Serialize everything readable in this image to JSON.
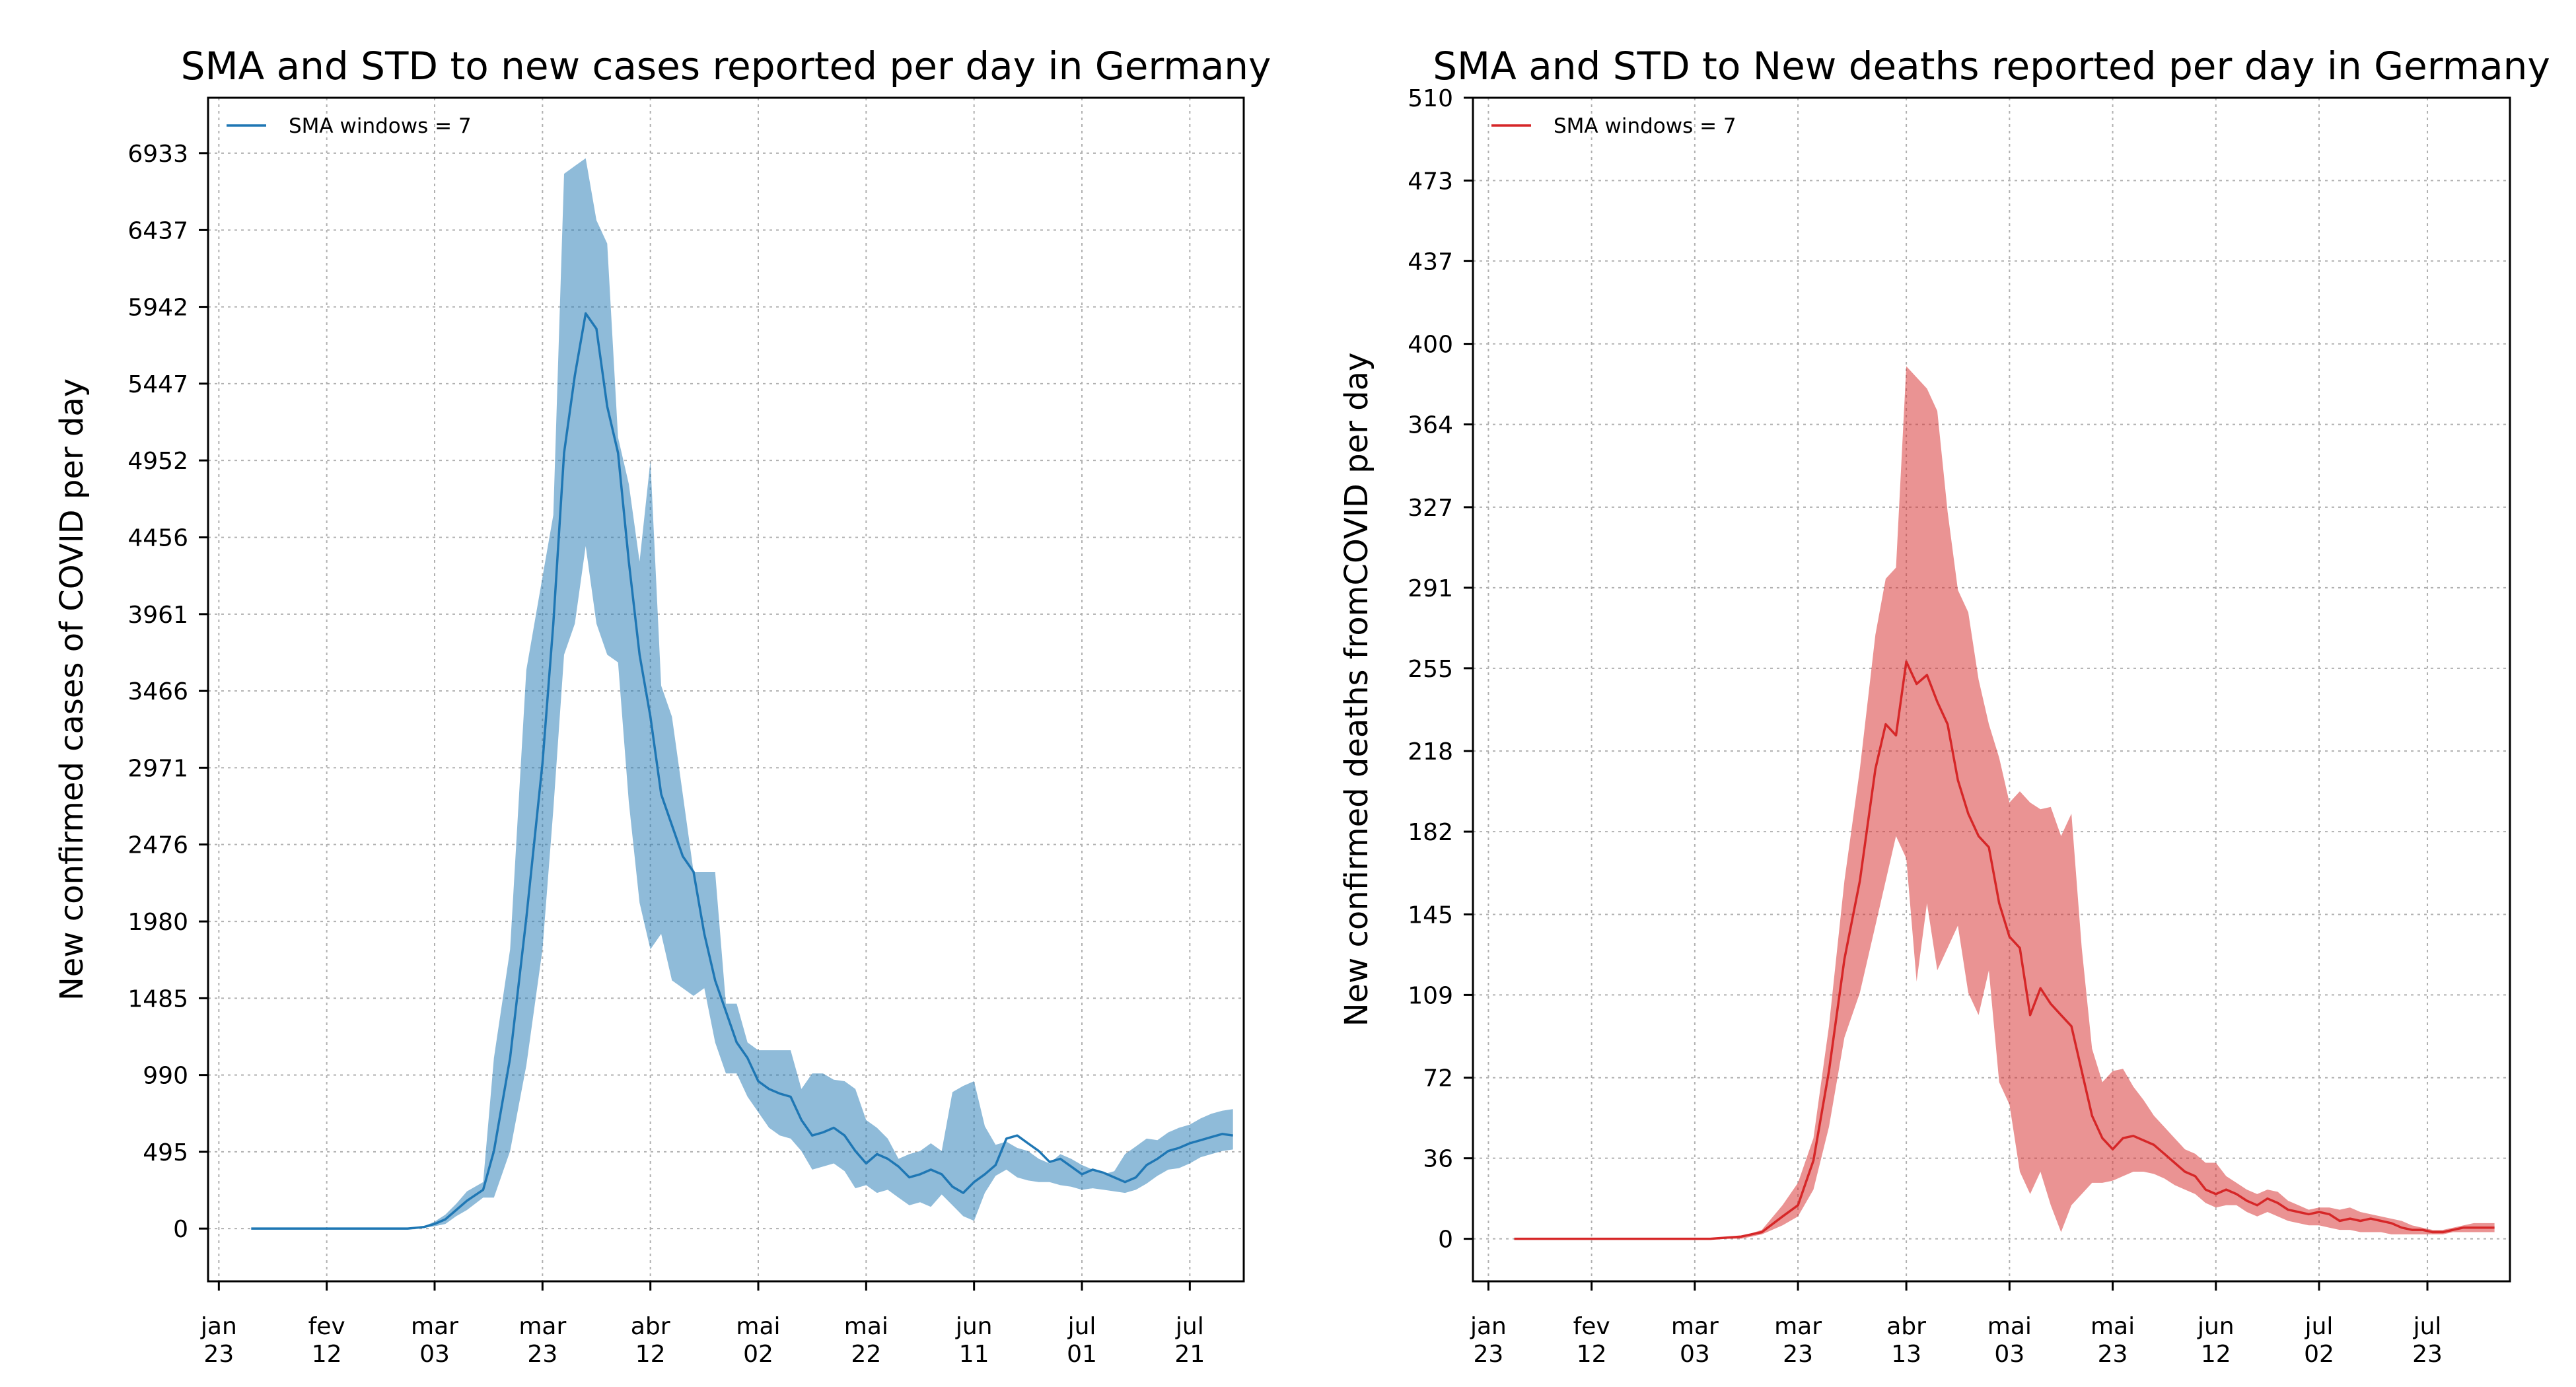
{
  "chart_data": [
    {
      "type": "area",
      "title": "SMA and STD to new cases reported per day in Germany",
      "xlabel": "",
      "ylabel": "New confirmed cases of COVID per day",
      "legend": {
        "label": "SMA windows = 7",
        "placement": "top-left"
      },
      "grid": true,
      "color": "#1f77b4",
      "band_color": "#1f77b4",
      "band_opacity": 0.5,
      "x_range": [
        "2020-01-21",
        "2020-07-31"
      ],
      "ylim": [
        -340,
        7290
      ],
      "yticks": [
        0,
        495,
        990,
        1485,
        1980,
        2476,
        2971,
        3466,
        3961,
        4456,
        4952,
        5447,
        5942,
        6437,
        6933
      ],
      "xticks": [
        {
          "date": "2020-01-23",
          "l1": "jan",
          "l2": "23"
        },
        {
          "date": "2020-02-12",
          "l1": "fev",
          "l2": "12"
        },
        {
          "date": "2020-03-03",
          "l1": "mar",
          "l2": "03"
        },
        {
          "date": "2020-03-23",
          "l1": "mar",
          "l2": "23"
        },
        {
          "date": "2020-04-12",
          "l1": "abr",
          "l2": "12"
        },
        {
          "date": "2020-05-02",
          "l1": "mai",
          "l2": "02"
        },
        {
          "date": "2020-05-22",
          "l1": "mai",
          "l2": "22"
        },
        {
          "date": "2020-06-11",
          "l1": "jun",
          "l2": "11"
        },
        {
          "date": "2020-07-01",
          "l1": "jul",
          "l2": "01"
        },
        {
          "date": "2020-07-21",
          "l1": "jul",
          "l2": "21"
        }
      ],
      "series": [
        {
          "name": "SMA windows = 7",
          "x": [
            "2020-01-29",
            "2020-02-20",
            "2020-02-27",
            "2020-03-01",
            "2020-03-03",
            "2020-03-05",
            "2020-03-07",
            "2020-03-09",
            "2020-03-12",
            "2020-03-14",
            "2020-03-17",
            "2020-03-20",
            "2020-03-23",
            "2020-03-25",
            "2020-03-27",
            "2020-03-29",
            "2020-03-31",
            "2020-04-02",
            "2020-04-04",
            "2020-04-06",
            "2020-04-08",
            "2020-04-10",
            "2020-04-12",
            "2020-04-14",
            "2020-04-16",
            "2020-04-18",
            "2020-04-20",
            "2020-04-22",
            "2020-04-24",
            "2020-04-26",
            "2020-04-28",
            "2020-04-30",
            "2020-05-02",
            "2020-05-04",
            "2020-05-06",
            "2020-05-08",
            "2020-05-10",
            "2020-05-12",
            "2020-05-14",
            "2020-05-16",
            "2020-05-18",
            "2020-05-20",
            "2020-05-22",
            "2020-05-24",
            "2020-05-26",
            "2020-05-28",
            "2020-05-30",
            "2020-06-01",
            "2020-06-03",
            "2020-06-05",
            "2020-06-07",
            "2020-06-09",
            "2020-06-11",
            "2020-06-13",
            "2020-06-15",
            "2020-06-17",
            "2020-06-19",
            "2020-06-21",
            "2020-06-23",
            "2020-06-25",
            "2020-06-27",
            "2020-06-29",
            "2020-07-01",
            "2020-07-03",
            "2020-07-05",
            "2020-07-07",
            "2020-07-09",
            "2020-07-11",
            "2020-07-13",
            "2020-07-15",
            "2020-07-17",
            "2020-07-19",
            "2020-07-21",
            "2020-07-23",
            "2020-07-25",
            "2020-07-27",
            "2020-07-29"
          ],
          "mean": [
            0,
            0,
            0,
            10,
            30,
            60,
            120,
            180,
            250,
            500,
            1100,
            2000,
            3000,
            3900,
            5000,
            5500,
            5900,
            5800,
            5300,
            5000,
            4300,
            3700,
            3300,
            2800,
            2600,
            2400,
            2300,
            1900,
            1600,
            1400,
            1200,
            1100,
            950,
            900,
            870,
            850,
            700,
            600,
            620,
            650,
            600,
            500,
            420,
            480,
            450,
            400,
            330,
            350,
            380,
            350,
            270,
            230,
            300,
            350,
            410,
            580,
            600,
            550,
            500,
            430,
            450,
            400,
            350,
            380,
            360,
            330,
            300,
            330,
            410,
            450,
            500,
            520,
            550,
            570,
            590,
            610,
            600
          ],
          "upper": [
            0,
            0,
            0,
            15,
            45,
            90,
            160,
            240,
            300,
            1100,
            1800,
            3600,
            4200,
            4600,
            6800,
            6850,
            6900,
            6500,
            6350,
            5100,
            4800,
            4300,
            4950,
            3500,
            3300,
            2800,
            2300,
            2300,
            2300,
            1450,
            1450,
            1200,
            1150,
            1150,
            1150,
            1150,
            900,
            1000,
            1000,
            960,
            950,
            900,
            700,
            650,
            580,
            450,
            480,
            500,
            550,
            500,
            880,
            920,
            950,
            660,
            540,
            560,
            520,
            500,
            450,
            420,
            480,
            450,
            410,
            380,
            350,
            370,
            480,
            530,
            580,
            570,
            620,
            650,
            670,
            710,
            740,
            760,
            770
          ],
          "lower": [
            0,
            0,
            0,
            5,
            15,
            30,
            80,
            120,
            200,
            200,
            500,
            1050,
            1800,
            2700,
            3700,
            3900,
            4400,
            3900,
            3700,
            3650,
            2750,
            2100,
            1800,
            1900,
            1600,
            1550,
            1500,
            1550,
            1200,
            1000,
            1000,
            850,
            750,
            650,
            600,
            580,
            500,
            380,
            400,
            420,
            370,
            260,
            280,
            230,
            250,
            200,
            150,
            170,
            140,
            220,
            150,
            80,
            50,
            230,
            340,
            380,
            330,
            310,
            300,
            300,
            280,
            270,
            250,
            260,
            250,
            240,
            230,
            250,
            290,
            340,
            380,
            390,
            420,
            460,
            480,
            500,
            510
          ]
        }
      ]
    },
    {
      "type": "area",
      "title": "SMA and STD to New deaths reported per day in Germany",
      "xlabel": "",
      "ylabel": "New confirmed deaths fromCOVID per day",
      "legend": {
        "label": "SMA windows = 7",
        "placement": "top-left"
      },
      "grid": true,
      "color": "#d62728",
      "band_color": "#d62728",
      "band_opacity": 0.5,
      "x_range": [
        "2020-01-20",
        "2020-08-08"
      ],
      "ylim": [
        -19,
        510
      ],
      "yticks": [
        0,
        36,
        72,
        109,
        145,
        182,
        218,
        255,
        291,
        327,
        364,
        400,
        437,
        473,
        510
      ],
      "xticks": [
        {
          "date": "2020-01-23",
          "l1": "jan",
          "l2": "23"
        },
        {
          "date": "2020-02-12",
          "l1": "fev",
          "l2": "12"
        },
        {
          "date": "2020-03-03",
          "l1": "mar",
          "l2": "03"
        },
        {
          "date": "2020-03-23",
          "l1": "mar",
          "l2": "23"
        },
        {
          "date": "2020-04-13",
          "l1": "abr",
          "l2": "13"
        },
        {
          "date": "2020-05-03",
          "l1": "mai",
          "l2": "03"
        },
        {
          "date": "2020-05-23",
          "l1": "mai",
          "l2": "23"
        },
        {
          "date": "2020-06-12",
          "l1": "jun",
          "l2": "12"
        },
        {
          "date": "2020-07-02",
          "l1": "jul",
          "l2": "02"
        },
        {
          "date": "2020-07-23",
          "l1": "jul",
          "l2": "23"
        }
      ],
      "series": [
        {
          "name": "SMA windows = 7",
          "x": [
            "2020-01-28",
            "2020-03-06",
            "2020-03-12",
            "2020-03-16",
            "2020-03-20",
            "2020-03-23",
            "2020-03-26",
            "2020-03-29",
            "2020-04-01",
            "2020-04-04",
            "2020-04-07",
            "2020-04-09",
            "2020-04-11",
            "2020-04-13",
            "2020-04-15",
            "2020-04-17",
            "2020-04-19",
            "2020-04-21",
            "2020-04-23",
            "2020-04-25",
            "2020-04-27",
            "2020-04-29",
            "2020-05-01",
            "2020-05-03",
            "2020-05-05",
            "2020-05-07",
            "2020-05-09",
            "2020-05-11",
            "2020-05-13",
            "2020-05-15",
            "2020-05-17",
            "2020-05-19",
            "2020-05-21",
            "2020-05-23",
            "2020-05-25",
            "2020-05-27",
            "2020-05-29",
            "2020-05-31",
            "2020-06-02",
            "2020-06-04",
            "2020-06-06",
            "2020-06-08",
            "2020-06-10",
            "2020-06-12",
            "2020-06-14",
            "2020-06-16",
            "2020-06-18",
            "2020-06-20",
            "2020-06-22",
            "2020-06-24",
            "2020-06-26",
            "2020-06-28",
            "2020-06-30",
            "2020-07-02",
            "2020-07-04",
            "2020-07-06",
            "2020-07-08",
            "2020-07-10",
            "2020-07-12",
            "2020-07-14",
            "2020-07-16",
            "2020-07-18",
            "2020-07-20",
            "2020-07-22",
            "2020-07-24",
            "2020-07-26",
            "2020-07-28",
            "2020-07-30",
            "2020-08-01",
            "2020-08-03",
            "2020-08-05"
          ],
          "mean": [
            0,
            0,
            1,
            3,
            10,
            15,
            35,
            75,
            125,
            160,
            210,
            230,
            225,
            258,
            248,
            252,
            240,
            230,
            205,
            190,
            180,
            175,
            150,
            135,
            130,
            100,
            112,
            105,
            100,
            95,
            75,
            55,
            45,
            40,
            45,
            46,
            44,
            42,
            38,
            34,
            30,
            28,
            22,
            20,
            22,
            20,
            17,
            15,
            18,
            16,
            13,
            12,
            11,
            12,
            11,
            8,
            9,
            8,
            9,
            8,
            7,
            5,
            4,
            4,
            3,
            3,
            4,
            5,
            5,
            5,
            5
          ],
          "upper": [
            0,
            0,
            1,
            4,
            15,
            25,
            45,
            95,
            160,
            210,
            270,
            295,
            300,
            390,
            385,
            380,
            370,
            325,
            290,
            280,
            250,
            230,
            215,
            195,
            200,
            195,
            192,
            193,
            180,
            190,
            130,
            85,
            70,
            75,
            76,
            68,
            62,
            55,
            50,
            45,
            40,
            38,
            34,
            34,
            28,
            25,
            22,
            20,
            22,
            21,
            17,
            15,
            13,
            14,
            14,
            13,
            14,
            12,
            11,
            10,
            9,
            8,
            6,
            5,
            4,
            4,
            5,
            6,
            7,
            7,
            7
          ],
          "lower": [
            0,
            0,
            0,
            2,
            6,
            10,
            22,
            50,
            90,
            110,
            140,
            160,
            180,
            170,
            115,
            150,
            120,
            130,
            140,
            110,
            100,
            120,
            70,
            60,
            30,
            20,
            30,
            15,
            3,
            15,
            20,
            25,
            25,
            26,
            28,
            30,
            30,
            29,
            27,
            24,
            22,
            20,
            16,
            14,
            15,
            15,
            12,
            10,
            12,
            10,
            8,
            7,
            6,
            6,
            5,
            4,
            4,
            3,
            3,
            3,
            2,
            2,
            2,
            2,
            2,
            2,
            3,
            3,
            3,
            3,
            3
          ]
        }
      ]
    }
  ]
}
